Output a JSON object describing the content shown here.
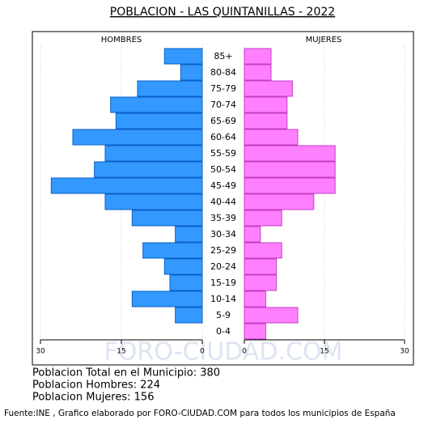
{
  "chart_data": {
    "type": "pyramid",
    "title": "POBLACION - LAS QUINTANILLAS - 2022",
    "categories": [
      "85+",
      "80-84",
      "75-79",
      "70-74",
      "65-69",
      "60-64",
      "55-59",
      "50-54",
      "45-49",
      "40-44",
      "35-39",
      "30-34",
      "25-29",
      "20-24",
      "15-19",
      "10-14",
      "5-9",
      "0-4"
    ],
    "series": [
      {
        "name": "HOMBRES",
        "color": "#3399ff",
        "values": [
          7,
          4,
          12,
          17,
          16,
          24,
          18,
          20,
          28,
          18,
          13,
          5,
          11,
          7,
          6,
          13,
          5,
          0
        ]
      },
      {
        "name": "MUJERES",
        "color": "#ff80ff",
        "values": [
          5,
          5,
          9,
          8,
          8,
          10,
          17,
          17,
          17,
          13,
          7,
          3,
          7,
          6,
          6,
          4,
          10,
          4
        ]
      }
    ],
    "left_axis": {
      "xlim": [
        30,
        0
      ],
      "xticks": [
        30,
        15,
        0
      ]
    },
    "right_axis": {
      "xlim": [
        0,
        30
      ],
      "xticks": [
        0,
        15,
        30
      ]
    },
    "grid": true,
    "watermark": "FORO-CIUDAD.COM",
    "summary": [
      "Poblacion Total en el Municipio: 380",
      "Poblacion Hombres: 224",
      "Poblacion Mujeres: 156"
    ],
    "source": "Fuente:INE , Grafico elaborado por FORO-CIUDAD.COM para todos los municipios de España"
  }
}
